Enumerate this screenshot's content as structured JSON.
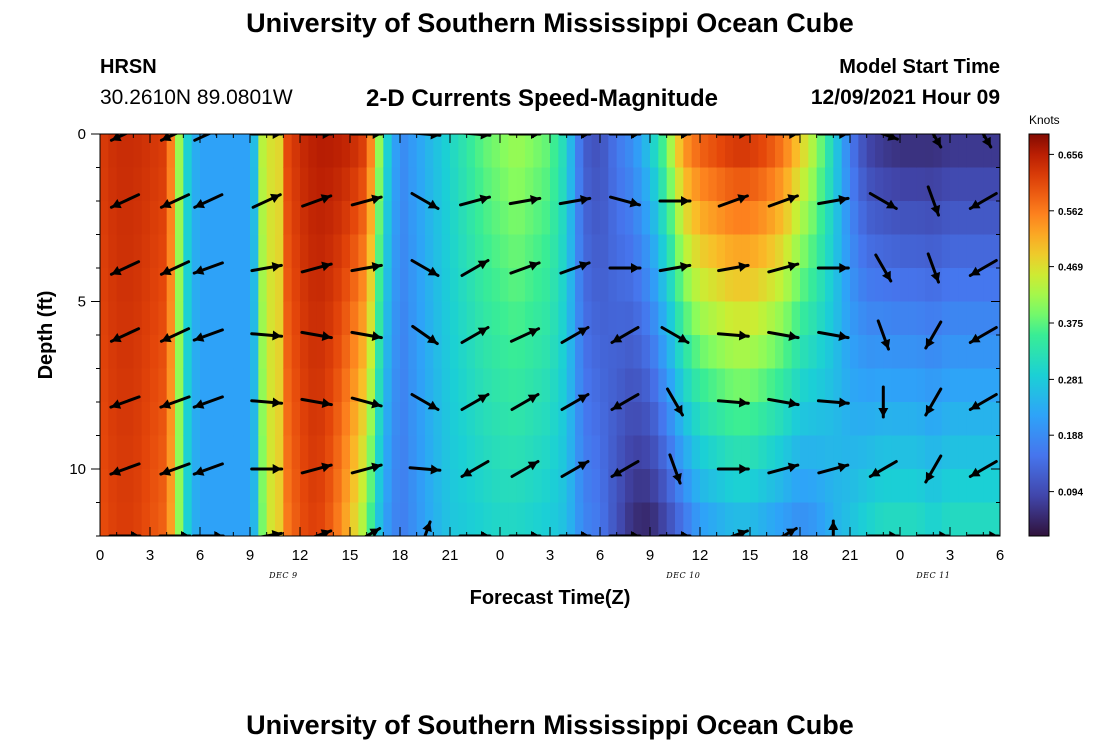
{
  "header": {
    "title": "University of Southern Mississippi Ocean Cube",
    "station_code": "HRSN",
    "station_coords": "30.2610N  89.0801W",
    "subtitle": "2-D Currents Speed-Magnitude",
    "model_label": "Model Start Time",
    "model_time": "12/09/2021 Hour 09"
  },
  "footer": {
    "title": "University of Southern Mississippi Ocean Cube"
  },
  "chart_data": {
    "type": "heatmap",
    "title": "2-D Currents Speed-Magnitude",
    "xlabel": "Forecast Time(Z)",
    "ylabel": "Depth (ft)",
    "x_tick_labels": [
      "0",
      "3",
      "6",
      "9",
      "12",
      "15",
      "18",
      "21",
      "0",
      "3",
      "6",
      "9",
      "12",
      "15",
      "18",
      "21",
      "0",
      "3",
      "6"
    ],
    "date_labels": [
      {
        "label": "DEC 9",
        "hour": 11
      },
      {
        "label": "DEC 10",
        "hour": 35
      },
      {
        "label": "DEC 11",
        "hour": 50
      }
    ],
    "xlim": [
      0,
      54
    ],
    "ylim": [
      0,
      12
    ],
    "y_ticks": [
      0,
      5,
      10
    ],
    "y_axis_inverted": true,
    "colorbar": {
      "unit": "Knots",
      "tick_labels": [
        "0.656",
        "0.562",
        "0.469",
        "0.375",
        "0.281",
        "0.188",
        "0.094"
      ],
      "tick_values": [
        0.656,
        0.562,
        0.469,
        0.375,
        0.281,
        0.188,
        0.094
      ],
      "min": 0.02,
      "max": 0.69
    },
    "speed_profile_hours": [
      0,
      1,
      2,
      3,
      4,
      4.5,
      5,
      5.5,
      6,
      7,
      8,
      9,
      9.5,
      10,
      10.5,
      11,
      12,
      13,
      14,
      15,
      16,
      16.5,
      17,
      18,
      19,
      20,
      21,
      22,
      23,
      24,
      25,
      26,
      27,
      28,
      28.5,
      29,
      30,
      31,
      32,
      33,
      34,
      35,
      36,
      37,
      38,
      39,
      40,
      41,
      42,
      43,
      44,
      45,
      46,
      47,
      48,
      49,
      50,
      51,
      52,
      53,
      54
    ],
    "speed_surface": [
      0.62,
      0.64,
      0.64,
      0.63,
      0.62,
      0.5,
      0.33,
      0.25,
      0.22,
      0.22,
      0.22,
      0.22,
      0.3,
      0.58,
      0.35,
      0.6,
      0.64,
      0.66,
      0.66,
      0.65,
      0.62,
      0.5,
      0.33,
      0.18,
      0.22,
      0.26,
      0.3,
      0.34,
      0.38,
      0.4,
      0.42,
      0.4,
      0.38,
      0.3,
      0.2,
      0.12,
      0.1,
      0.16,
      0.2,
      0.28,
      0.4,
      0.55,
      0.6,
      0.62,
      0.64,
      0.64,
      0.62,
      0.58,
      0.5,
      0.42,
      0.3,
      0.16,
      0.08,
      0.06,
      0.05,
      0.05,
      0.05,
      0.06,
      0.06,
      0.06,
      0.06
    ],
    "speed_bottom": [
      0.6,
      0.62,
      0.62,
      0.6,
      0.58,
      0.48,
      0.33,
      0.25,
      0.22,
      0.22,
      0.22,
      0.22,
      0.28,
      0.5,
      0.42,
      0.55,
      0.6,
      0.62,
      0.58,
      0.5,
      0.4,
      0.3,
      0.22,
      0.16,
      0.2,
      0.24,
      0.27,
      0.28,
      0.29,
      0.3,
      0.3,
      0.29,
      0.28,
      0.26,
      0.22,
      0.18,
      0.16,
      0.1,
      0.05,
      0.04,
      0.08,
      0.14,
      0.2,
      0.22,
      0.24,
      0.24,
      0.22,
      0.2,
      0.18,
      0.2,
      0.24,
      0.27,
      0.3,
      0.32,
      0.32,
      0.32,
      0.3,
      0.32,
      0.32,
      0.32,
      0.32
    ],
    "arrow_hours": [
      1.5,
      4.5,
      6.5,
      10,
      13,
      16,
      19.5,
      22.5,
      25.5,
      28.5,
      31.5,
      34.5,
      38,
      41,
      44,
      47,
      50,
      53
    ],
    "arrow_depths": [
      0,
      2,
      4,
      6,
      8,
      10,
      12
    ],
    "arrow_directions_deg": [
      [
        205,
        205,
        25,
        0,
        0,
        0,
        355,
        355,
        0,
        0,
        0,
        0,
        0,
        0,
        0,
        340,
        300,
        300
      ],
      [
        205,
        205,
        205,
        25,
        20,
        15,
        330,
        15,
        10,
        10,
        345,
        0,
        20,
        20,
        10,
        330,
        290,
        210
      ],
      [
        205,
        205,
        200,
        10,
        15,
        10,
        330,
        30,
        20,
        20,
        0,
        10,
        10,
        15,
        0,
        300,
        290,
        210
      ],
      [
        205,
        205,
        200,
        355,
        350,
        350,
        325,
        30,
        25,
        30,
        210,
        330,
        355,
        350,
        350,
        290,
        240,
        210
      ],
      [
        200,
        200,
        200,
        355,
        350,
        345,
        330,
        30,
        30,
        30,
        210,
        300,
        355,
        350,
        355,
        270,
        240,
        210
      ],
      [
        200,
        200,
        200,
        0,
        15,
        15,
        355,
        210,
        30,
        30,
        210,
        290,
        0,
        15,
        15,
        210,
        240,
        210
      ],
      [
        0,
        0,
        0,
        10,
        20,
        30,
        70,
        0,
        0,
        0,
        0,
        0,
        20,
        30,
        90,
        0,
        0,
        0
      ]
    ]
  }
}
